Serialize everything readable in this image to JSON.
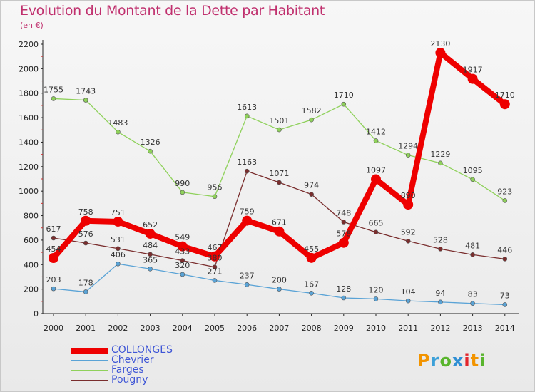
{
  "title": "Evolution du Montant de la Dette par Habitant",
  "subtitle": "(en €)",
  "logo": {
    "letters": [
      "P",
      "r",
      "o",
      "x",
      "i",
      "t",
      "i"
    ],
    "colors": [
      "#f29400",
      "#3ca0d8",
      "#59b52d",
      "#2f8fd4",
      "#e3262c",
      "#f29400",
      "#59b52d"
    ]
  },
  "chart_data": {
    "type": "line",
    "title": "Evolution du Montant de la Dette par Habitant",
    "subtitle": "(en €)",
    "xlabel": "",
    "ylabel": "",
    "ylim": [
      0,
      2200
    ],
    "yticks": [
      0,
      200,
      400,
      600,
      800,
      1000,
      1200,
      1400,
      1600,
      1800,
      2000,
      2200
    ],
    "grid": false,
    "legend_position": "bottom-left",
    "x": [
      "2000",
      "2001",
      "2002",
      "2003",
      "2004",
      "2005",
      "2006",
      "2007",
      "2008",
      "2009",
      "2010",
      "2011",
      "2012",
      "2013",
      "2014"
    ],
    "series": [
      {
        "name": "COLLONGES",
        "color": "#ee0000",
        "values": [
          454,
          758,
          751,
          652,
          549,
          467,
          759,
          671,
          455,
          578,
          1097,
          890,
          2130,
          1917,
          1710
        ]
      },
      {
        "name": "Chevrier",
        "color": "#5aa3d6",
        "values": [
          203,
          178,
          406,
          365,
          320,
          271,
          237,
          200,
          167,
          128,
          120,
          104,
          94,
          83,
          73
        ]
      },
      {
        "name": "Farges",
        "color": "#8fd15b",
        "values": [
          1755,
          1743,
          1483,
          1326,
          990,
          956,
          1613,
          1501,
          1582,
          1710,
          1412,
          1294,
          1229,
          1095,
          923
        ]
      },
      {
        "name": "Pougny",
        "color": "#7a2e2e",
        "values": [
          617,
          576,
          531,
          484,
          433,
          380,
          1163,
          1071,
          974,
          748,
          665,
          592,
          528,
          481,
          446
        ]
      }
    ]
  }
}
